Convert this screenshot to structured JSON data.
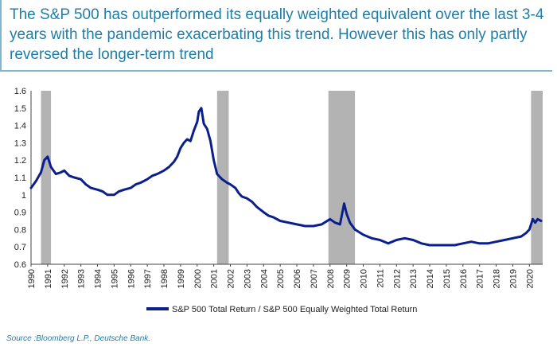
{
  "header": {
    "title": "The S&P 500 has outperformed its equally weighted equivalent over the last 3-4 years with the pandemic exacerbating this trend. However this has only partly reversed the longer-term trend"
  },
  "footer": {
    "source": "Source :Bloomberg L.P., Deutsche Bank."
  },
  "colors": {
    "series": "#0b1f8c",
    "recession": "#b3b3b3",
    "accent": "#1f7ea8"
  },
  "chart_data": {
    "type": "line",
    "title": "",
    "xlabel": "",
    "ylabel": "",
    "xlim": [
      1990,
      2020.8
    ],
    "ylim": [
      0.6,
      1.6
    ],
    "yticks": [
      "0.6",
      "0.7",
      "0.8",
      "0.9",
      "1",
      "1.1",
      "1.2",
      "1.3",
      "1.4",
      "1.5",
      "1.6"
    ],
    "xticks": [
      "1990",
      "1991",
      "1992",
      "1993",
      "1994",
      "1995",
      "1996",
      "1997",
      "1998",
      "1999",
      "2000",
      "2001",
      "2002",
      "2003",
      "2004",
      "2005",
      "2006",
      "2007",
      "2008",
      "2009",
      "2010",
      "2011",
      "2012",
      "2013",
      "2014",
      "2015",
      "2016",
      "2017",
      "2018",
      "2019",
      "2020"
    ],
    "grid": false,
    "legend_position": "bottom-center",
    "recession_shading": [
      [
        1990.6,
        1991.2
      ],
      [
        2001.2,
        2001.9
      ],
      [
        2007.9,
        2009.5
      ],
      [
        2020.1,
        2020.8
      ]
    ],
    "series": [
      {
        "name": "S&P 500 Total Return / S&P 500 Equally Weighted Total Return",
        "points": [
          [
            1990.0,
            1.04
          ],
          [
            1990.3,
            1.08
          ],
          [
            1990.6,
            1.13
          ],
          [
            1990.8,
            1.2
          ],
          [
            1991.0,
            1.22
          ],
          [
            1991.2,
            1.16
          ],
          [
            1991.5,
            1.12
          ],
          [
            1991.8,
            1.13
          ],
          [
            1992.0,
            1.14
          ],
          [
            1992.3,
            1.11
          ],
          [
            1992.6,
            1.1
          ],
          [
            1993.0,
            1.09
          ],
          [
            1993.3,
            1.06
          ],
          [
            1993.6,
            1.04
          ],
          [
            1994.0,
            1.03
          ],
          [
            1994.3,
            1.02
          ],
          [
            1994.6,
            1.0
          ],
          [
            1995.0,
            1.0
          ],
          [
            1995.3,
            1.02
          ],
          [
            1995.6,
            1.03
          ],
          [
            1996.0,
            1.04
          ],
          [
            1996.3,
            1.06
          ],
          [
            1996.6,
            1.07
          ],
          [
            1997.0,
            1.09
          ],
          [
            1997.3,
            1.11
          ],
          [
            1997.6,
            1.12
          ],
          [
            1998.0,
            1.14
          ],
          [
            1998.3,
            1.16
          ],
          [
            1998.6,
            1.19
          ],
          [
            1998.8,
            1.22
          ],
          [
            1999.0,
            1.27
          ],
          [
            1999.2,
            1.3
          ],
          [
            1999.4,
            1.32
          ],
          [
            1999.6,
            1.31
          ],
          [
            1999.8,
            1.37
          ],
          [
            2000.0,
            1.42
          ],
          [
            2000.1,
            1.48
          ],
          [
            2000.25,
            1.5
          ],
          [
            2000.4,
            1.41
          ],
          [
            2000.6,
            1.38
          ],
          [
            2000.8,
            1.31
          ],
          [
            2001.0,
            1.2
          ],
          [
            2001.2,
            1.12
          ],
          [
            2001.5,
            1.09
          ],
          [
            2001.8,
            1.07
          ],
          [
            2002.0,
            1.06
          ],
          [
            2002.3,
            1.04
          ],
          [
            2002.5,
            1.01
          ],
          [
            2002.7,
            0.99
          ],
          [
            2003.0,
            0.98
          ],
          [
            2003.3,
            0.96
          ],
          [
            2003.6,
            0.93
          ],
          [
            2004.0,
            0.9
          ],
          [
            2004.3,
            0.88
          ],
          [
            2004.6,
            0.87
          ],
          [
            2005.0,
            0.85
          ],
          [
            2005.5,
            0.84
          ],
          [
            2006.0,
            0.83
          ],
          [
            2006.5,
            0.82
          ],
          [
            2007.0,
            0.82
          ],
          [
            2007.5,
            0.83
          ],
          [
            2008.0,
            0.86
          ],
          [
            2008.3,
            0.84
          ],
          [
            2008.6,
            0.83
          ],
          [
            2008.85,
            0.95
          ],
          [
            2009.0,
            0.89
          ],
          [
            2009.2,
            0.84
          ],
          [
            2009.5,
            0.8
          ],
          [
            2010.0,
            0.77
          ],
          [
            2010.5,
            0.75
          ],
          [
            2011.0,
            0.74
          ],
          [
            2011.5,
            0.72
          ],
          [
            2012.0,
            0.74
          ],
          [
            2012.5,
            0.75
          ],
          [
            2013.0,
            0.74
          ],
          [
            2013.5,
            0.72
          ],
          [
            2014.0,
            0.71
          ],
          [
            2014.5,
            0.71
          ],
          [
            2015.0,
            0.71
          ],
          [
            2015.5,
            0.71
          ],
          [
            2016.0,
            0.72
          ],
          [
            2016.5,
            0.73
          ],
          [
            2017.0,
            0.72
          ],
          [
            2017.5,
            0.72
          ],
          [
            2018.0,
            0.73
          ],
          [
            2018.5,
            0.74
          ],
          [
            2019.0,
            0.75
          ],
          [
            2019.5,
            0.76
          ],
          [
            2019.8,
            0.78
          ],
          [
            2020.0,
            0.8
          ],
          [
            2020.2,
            0.86
          ],
          [
            2020.35,
            0.84
          ],
          [
            2020.5,
            0.86
          ],
          [
            2020.7,
            0.85
          ]
        ]
      }
    ]
  }
}
